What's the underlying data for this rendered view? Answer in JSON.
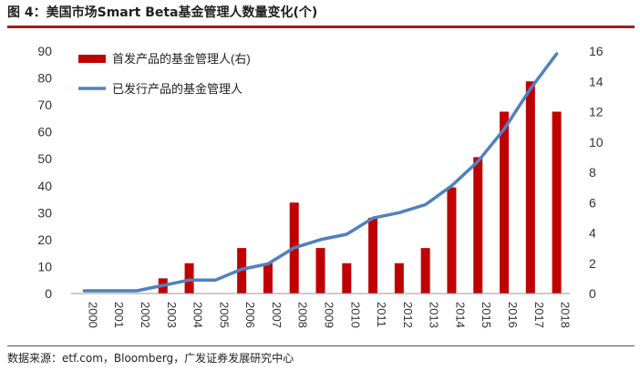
{
  "title": "图 4：美国市场Smart Beta基金管理人数量变化(个)",
  "source": "数据来源：etf.com，Bloomberg，广发证券发展研究中心",
  "colors": {
    "bar": "#c00000",
    "line": "#4f81bd",
    "accent_rule": "#9e1f1f"
  },
  "chart_data": {
    "type": "bar",
    "categories": [
      "2000",
      "2001",
      "2002",
      "2003",
      "2004",
      "2005",
      "2006",
      "2007",
      "2008",
      "2009",
      "2010",
      "2011",
      "2012",
      "2013",
      "2014",
      "2015",
      "2016",
      "2017",
      "2018"
    ],
    "series": [
      {
        "name": "首发产品的基金管理人(右)",
        "type": "bar",
        "axis": "right",
        "values": [
          0,
          0,
          0,
          1,
          2,
          0,
          3,
          2,
          6,
          3,
          2,
          5,
          2,
          3,
          7,
          9,
          12,
          14,
          12
        ]
      },
      {
        "name": "已发行产品的基金管理人",
        "type": "line",
        "axis": "left",
        "values": [
          1,
          1,
          1,
          3,
          5,
          5,
          9,
          11,
          17,
          20,
          22,
          28,
          30,
          33,
          40,
          49,
          61,
          76,
          89
        ]
      }
    ],
    "left_axis": {
      "min": 0,
      "max": 90,
      "ticks": [
        0,
        10,
        20,
        30,
        40,
        50,
        60,
        70,
        80,
        90
      ]
    },
    "right_axis": {
      "min": 0,
      "max": 16,
      "ticks": [
        0,
        2,
        4,
        6,
        8,
        10,
        12,
        14,
        16
      ]
    },
    "legend_placement": "top-left",
    "grid": false
  }
}
